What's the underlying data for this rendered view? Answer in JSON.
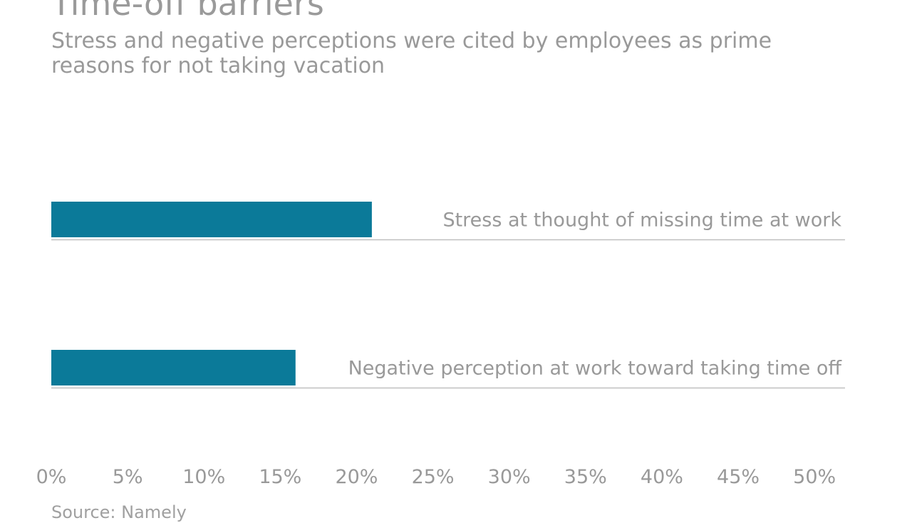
{
  "chart_data": {
    "type": "bar",
    "orientation": "horizontal",
    "title": "Time-off barriers",
    "subtitle": "Stress and negative perceptions were cited by employees as prime reasons for not taking vacation",
    "source": "Source: Namely",
    "categories": [
      "Stress at thought of missing time at work",
      "Negative perception at work toward taking time off"
    ],
    "values": [
      21,
      16
    ],
    "unit": "%",
    "xlim": [
      0,
      52
    ],
    "x_ticks": [
      0,
      5,
      10,
      15,
      20,
      25,
      30,
      35,
      40,
      45,
      50
    ],
    "x_tick_labels": [
      "0%",
      "5%",
      "10%",
      "15%",
      "20%",
      "25%",
      "30%",
      "35%",
      "40%",
      "45%",
      "50%"
    ],
    "xlabel": "",
    "ylabel": "",
    "grid": false,
    "legend": "none",
    "colors": {
      "bar": "#0b7a99",
      "baseline": "#bfbfbf",
      "text": "#999999"
    }
  }
}
